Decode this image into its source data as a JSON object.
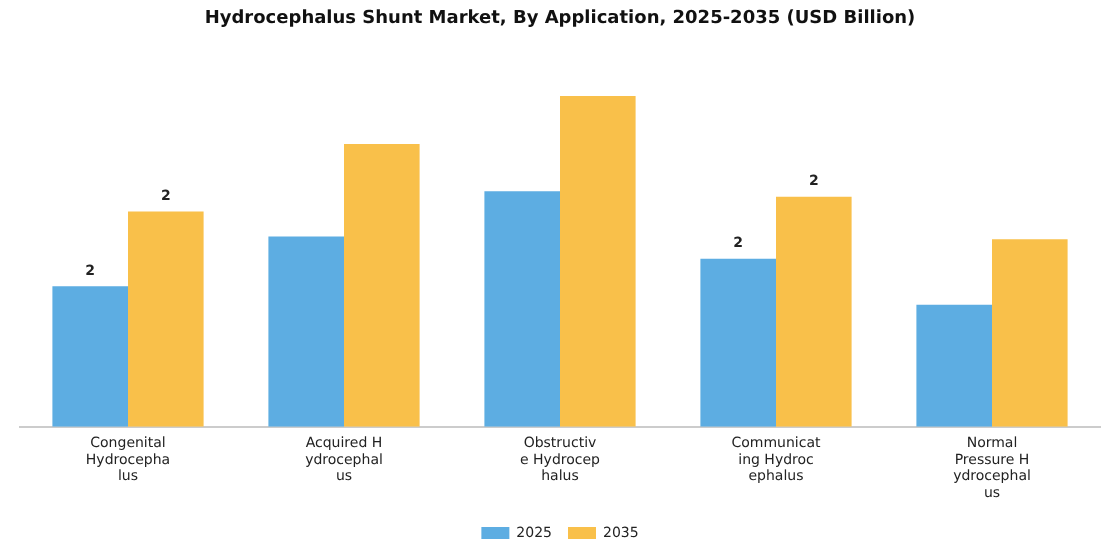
{
  "chart_data": {
    "type": "bar",
    "title": "Hydrocephalus Shunt Market, By Application, 2025-2035 (USD Billion)",
    "categories": [
      "Congenital Hydrocephalus",
      "Acquired Hydrocephalus",
      "Obstructive Hydrocephalus",
      "Communicating Hydrocephalus",
      "Normal Pressure Hydrocephalus"
    ],
    "tick_labels": "x",
    "grid": false,
    "legend": "bottom",
    "series": [
      {
        "name": "2025",
        "color": "#5dade2",
        "values": [
          1.52,
          2.06,
          2.55,
          1.82,
          1.32
        ],
        "value_labels": [
          "2",
          null,
          null,
          "2",
          null
        ]
      },
      {
        "name": "2035",
        "color": "#f9c04a",
        "values": [
          2.33,
          3.06,
          3.58,
          2.49,
          2.03
        ],
        "value_labels": [
          "2",
          null,
          null,
          "2",
          null
        ]
      }
    ]
  }
}
